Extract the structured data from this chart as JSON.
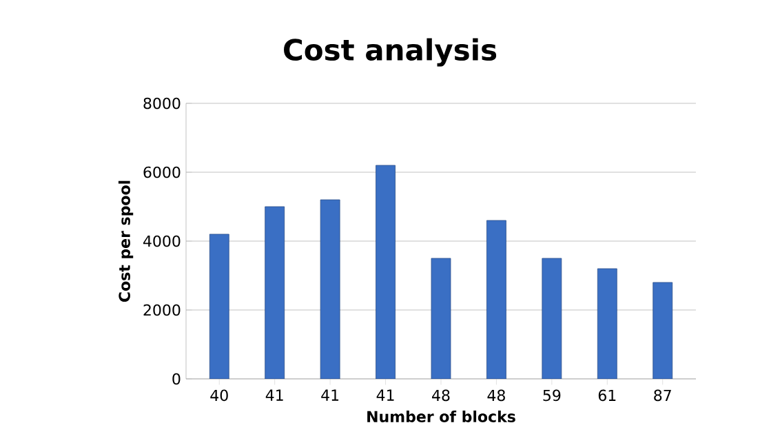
{
  "chart_data": {
    "type": "bar",
    "title": "Cost analysis",
    "xlabel": "Number of blocks",
    "ylabel": "Cost per spool",
    "categories": [
      "40",
      "41",
      "41",
      "41",
      "48",
      "48",
      "59",
      "61",
      "87"
    ],
    "values": [
      4200,
      5000,
      5200,
      6200,
      3500,
      4600,
      3500,
      3200,
      2800
    ],
    "color": "#3a6fc4",
    "ylim": [
      0,
      8000
    ],
    "yticks": [
      0,
      2000,
      4000,
      6000,
      8000
    ],
    "grid": "y"
  }
}
